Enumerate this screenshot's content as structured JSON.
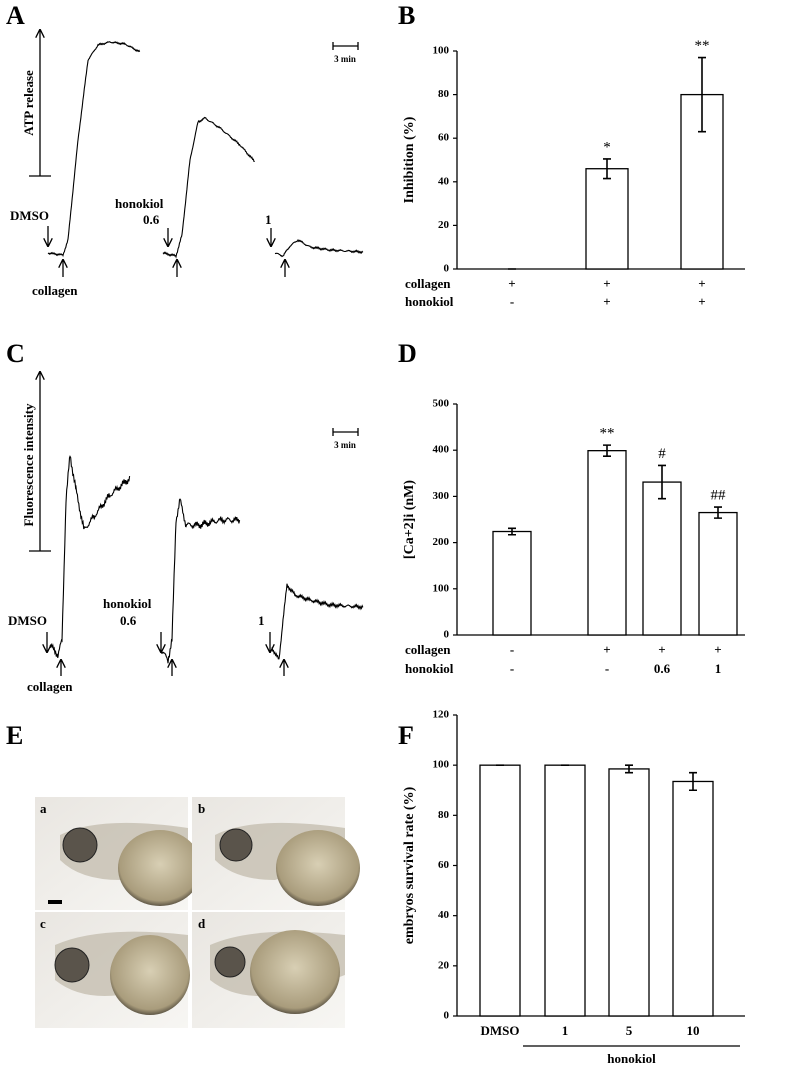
{
  "panel_labels": [
    "A",
    "B",
    "C",
    "D",
    "E",
    "F"
  ],
  "traces": {
    "A": {
      "y_label": "ATP release",
      "scale": "3 min",
      "labels": [
        "DMSO",
        "collagen",
        "honokiol",
        "0.6",
        "1"
      ]
    },
    "C": {
      "y_label": "Fluorescence intensity",
      "scale": "3 min",
      "labels": [
        "DMSO",
        "collagen",
        "honokiol",
        "0.6",
        "1"
      ]
    }
  },
  "images": {
    "labels": [
      "a",
      "b",
      "c",
      "d"
    ]
  },
  "chart_data": [
    {
      "type": "bar",
      "y_label": "Inhibition (%)",
      "color": "#ffffff",
      "rows": [
        {
          "name": "collagen",
          "values": [
            "+",
            "+",
            "+"
          ]
        },
        {
          "name": "honokiol",
          "values": [
            "-",
            "+",
            "+"
          ]
        }
      ],
      "values": [
        0,
        46,
        80
      ],
      "errors": [
        0,
        4.5,
        17
      ],
      "annotations": [
        null,
        "*",
        "**"
      ],
      "ylim": [
        0,
        100
      ],
      "yticks": [
        0,
        20,
        40,
        60,
        80,
        100
      ]
    },
    {
      "type": "bar",
      "y_label": "[Ca+2]i (nM)",
      "color": "#ffffff",
      "rows": [
        {
          "name": "collagen",
          "values": [
            "-",
            "+",
            "+",
            "+"
          ]
        },
        {
          "name": "honokiol",
          "values": [
            "-",
            "-",
            "0.6",
            "1"
          ]
        }
      ],
      "values": [
        224,
        399,
        331,
        265
      ],
      "errors": [
        7,
        12,
        36,
        12
      ],
      "annotations": [
        null,
        "**",
        "#",
        "##"
      ],
      "ylim": [
        0,
        500
      ],
      "yticks": [
        0,
        100,
        200,
        300,
        400,
        500
      ]
    },
    {
      "type": "bar",
      "y_label": "embryos survival rate (%)",
      "color": "#ffffff",
      "categories": [
        "DMSO",
        "1",
        "5",
        "10"
      ],
      "group_label": "honokiol",
      "values": [
        100,
        100,
        98.5,
        93.5
      ],
      "errors": [
        0,
        0,
        1.5,
        3.5
      ],
      "ylim": [
        0,
        120
      ],
      "yticks": [
        0,
        20,
        40,
        60,
        80,
        100,
        120
      ]
    }
  ]
}
